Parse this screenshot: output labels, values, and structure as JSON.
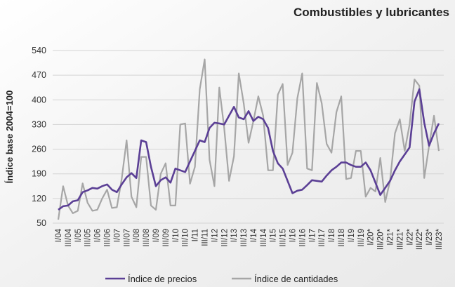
{
  "chart_data": {
    "type": "line",
    "title": "Combustibles y lubricantes",
    "y_label": "Índice base 2004=100",
    "categories": [
      "I/04",
      null,
      "III/04",
      null,
      "I/05",
      null,
      "III/05",
      null,
      "I/06",
      null,
      "III/06",
      null,
      "I/07",
      null,
      "III/07",
      null,
      "I/08",
      null,
      "III/08",
      null,
      "I/09",
      null,
      "III/09",
      null,
      "I/10",
      null,
      "III/10",
      null,
      "I/11",
      null,
      "III/11",
      null,
      "I/12",
      null,
      "III/12",
      null,
      "I/13",
      null,
      "III/13",
      null,
      "I/14",
      null,
      "III/14",
      null,
      "I/15",
      null,
      "III/15",
      null,
      "I/16",
      null,
      "III/16",
      null,
      "I/17",
      null,
      "III/17",
      null,
      "I/18",
      null,
      "III/18",
      null,
      "I/19",
      null,
      "III/19",
      null,
      "I/20*",
      null,
      "III/20*",
      null,
      "I/21*",
      null,
      "III/21*",
      null,
      "I/22*",
      null,
      "III/22*",
      null,
      "I/23*",
      null,
      "III/23*"
    ],
    "series": [
      {
        "name": "Índice de precios",
        "color": "#5b3f95",
        "values": [
          88,
          98,
          100,
          112,
          115,
          138,
          143,
          150,
          148,
          155,
          160,
          145,
          138,
          160,
          180,
          192,
          178,
          285,
          280,
          210,
          155,
          172,
          180,
          165,
          205,
          200,
          195,
          225,
          255,
          285,
          280,
          320,
          335,
          333,
          330,
          355,
          380,
          350,
          345,
          368,
          340,
          352,
          345,
          320,
          255,
          220,
          205,
          170,
          135,
          142,
          145,
          158,
          172,
          170,
          168,
          185,
          200,
          210,
          222,
          222,
          215,
          210,
          210,
          222,
          200,
          165,
          130,
          150,
          170,
          200,
          225,
          245,
          265,
          395,
          430,
          335,
          270,
          305,
          333
        ]
      },
      {
        "name": "Índice de cantidades",
        "color": "#a6a6a6",
        "values": [
          60,
          155,
          100,
          78,
          85,
          163,
          108,
          85,
          88,
          120,
          145,
          93,
          95,
          175,
          285,
          125,
          95,
          238,
          238,
          100,
          88,
          190,
          220,
          100,
          100,
          330,
          333,
          162,
          210,
          430,
          515,
          230,
          155,
          435,
          320,
          170,
          240,
          475,
          390,
          278,
          340,
          410,
          355,
          200,
          200,
          415,
          445,
          215,
          250,
          405,
          475,
          205,
          200,
          448,
          390,
          275,
          250,
          365,
          410,
          175,
          178,
          255,
          255,
          125,
          150,
          140,
          235,
          110,
          170,
          305,
          345,
          255,
          330,
          458,
          440,
          178,
          270,
          355,
          255
        ]
      }
    ],
    "ylim": [
      50,
      540
    ],
    "yticks": [
      50,
      120,
      190,
      260,
      330,
      400,
      470,
      540
    ],
    "grid": true
  }
}
